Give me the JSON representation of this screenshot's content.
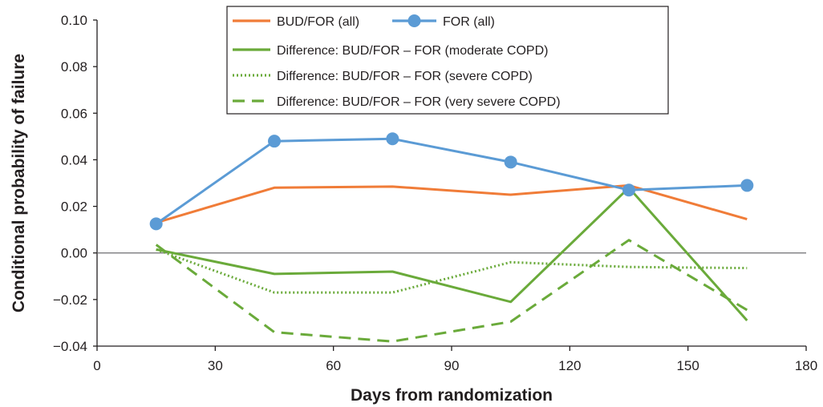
{
  "chart_data": {
    "type": "line",
    "title": "",
    "xlabel": "Days from randomization",
    "ylabel": "Conditional probability of failure",
    "xlim": [
      0,
      180
    ],
    "ylim": [
      -0.04,
      0.1
    ],
    "xticks": [
      0,
      30,
      60,
      90,
      120,
      150,
      180
    ],
    "yticks": [
      -0.04,
      -0.02,
      0.0,
      0.02,
      0.04,
      0.06,
      0.08,
      0.1
    ],
    "xtick_labels": [
      "0",
      "30",
      "60",
      "90",
      "120",
      "150",
      "180"
    ],
    "ytick_labels": [
      "−0.04",
      "−0.02",
      "0.00",
      "0.02",
      "0.04",
      "0.06",
      "0.08",
      "0.10"
    ],
    "grid": false,
    "zero_line": true,
    "legend_position": "top-center",
    "series": [
      {
        "name": "BUD/FOR (all)",
        "color": "#f07c38",
        "style": "solid",
        "markers": false,
        "points": [
          [
            15,
            0.013
          ],
          [
            45,
            0.028
          ],
          [
            75,
            0.0285
          ],
          [
            105,
            0.025
          ],
          [
            135,
            0.029
          ],
          [
            165,
            0.0145
          ]
        ]
      },
      {
        "name": "FOR (all)",
        "color": "#5b9bd5",
        "style": "solid",
        "markers": true,
        "points": [
          [
            15,
            0.0125
          ],
          [
            45,
            0.048
          ],
          [
            75,
            0.049
          ],
          [
            105,
            0.039
          ],
          [
            135,
            0.027
          ],
          [
            165,
            0.029
          ]
        ]
      },
      {
        "name": "Difference: BUD/FOR – FOR (moderate COPD)",
        "color": "#6aaa3a",
        "style": "solid",
        "markers": false,
        "points": [
          [
            15,
            0.0015
          ],
          [
            45,
            -0.009
          ],
          [
            75,
            -0.008
          ],
          [
            105,
            -0.021
          ],
          [
            135,
            0.028
          ],
          [
            165,
            -0.029
          ]
        ]
      },
      {
        "name": "Difference: BUD/FOR – FOR (severe COPD)",
        "color": "#6aaa3a",
        "style": "dotted",
        "markers": false,
        "points": [
          [
            15,
            0.0015
          ],
          [
            45,
            -0.017
          ],
          [
            75,
            -0.017
          ],
          [
            105,
            -0.004
          ],
          [
            135,
            -0.006
          ],
          [
            165,
            -0.0065
          ]
        ]
      },
      {
        "name": "Difference: BUD/FOR – FOR (very severe COPD)",
        "color": "#6aaa3a",
        "style": "dashed",
        "markers": false,
        "points": [
          [
            15,
            0.0035
          ],
          [
            45,
            -0.034
          ],
          [
            75,
            -0.038
          ],
          [
            105,
            -0.0295
          ],
          [
            135,
            0.0055
          ],
          [
            165,
            -0.0245
          ]
        ]
      }
    ]
  }
}
